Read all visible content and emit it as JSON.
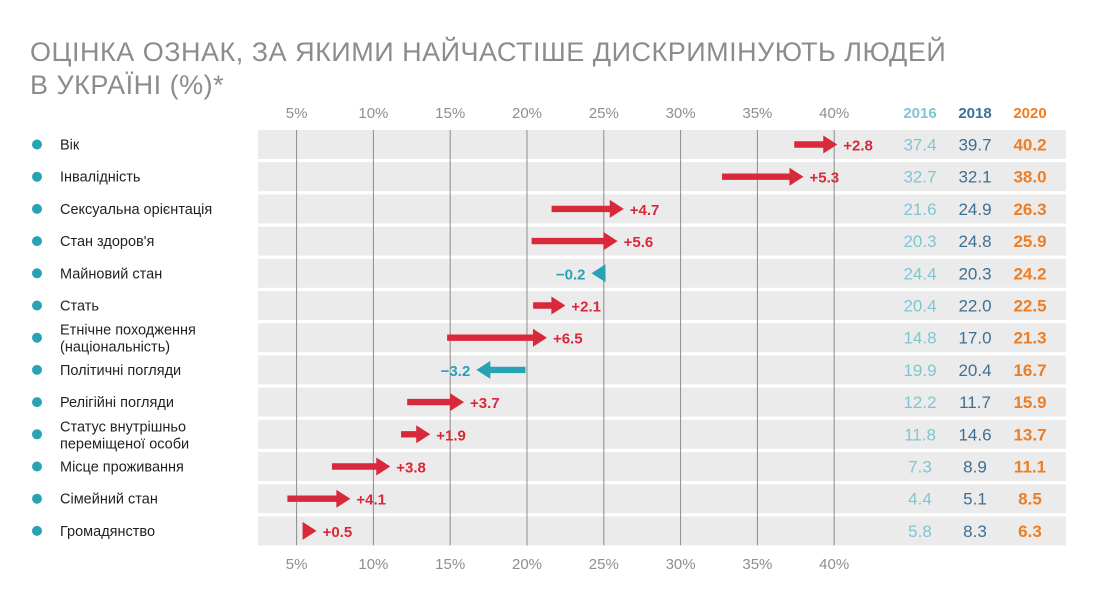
{
  "title_lines": [
    "ОЦІНКА ОЗНАК, ЗА ЯКИМИ НАЙЧАСТІШЕ ДИСКРИМІНУЮТЬ ЛЮДЕЙ",
    "В УКРАЇНІ (%)*"
  ],
  "colors": {
    "increase": "#d8283a",
    "decrease": "#27a3b5",
    "bullet": "#27a3b5",
    "year_2016": "#7ec6d1",
    "year_2018": "#3f6f93",
    "year_2020": "#ef7d22",
    "row_band": "#ebebeb",
    "grid": "#8c8c8c"
  },
  "chart_data": {
    "type": "arrow",
    "x_ticks": [
      "5%",
      "10%",
      "15%",
      "20%",
      "25%",
      "30%",
      "35%",
      "40%"
    ],
    "x_tick_values": [
      5,
      10,
      15,
      20,
      25,
      30,
      35,
      40
    ],
    "xlim": [
      2,
      46
    ],
    "years": [
      "2016",
      "2018",
      "2020"
    ],
    "rows": [
      {
        "label": [
          "Вік"
        ],
        "v2016": "37.4",
        "v2018": "39.7",
        "v2020": "40.2",
        "delta": "+2.8"
      },
      {
        "label": [
          "Інвалідність"
        ],
        "v2016": "32.7",
        "v2018": "32.1",
        "v2020": "38.0",
        "delta": "+5.3"
      },
      {
        "label": [
          "Сексуальна орієнтація"
        ],
        "v2016": "21.6",
        "v2018": "24.9",
        "v2020": "26.3",
        "delta": "+4.7"
      },
      {
        "label": [
          "Стан здоров'я"
        ],
        "v2016": "20.3",
        "v2018": "24.8",
        "v2020": "25.9",
        "delta": "+5.6"
      },
      {
        "label": [
          "Майновий стан"
        ],
        "v2016": "24.4",
        "v2018": "20.3",
        "v2020": "24.2",
        "delta": "−0.2"
      },
      {
        "label": [
          "Стать"
        ],
        "v2016": "20.4",
        "v2018": "22.0",
        "v2020": "22.5",
        "delta": "+2.1"
      },
      {
        "label": [
          "Етнічне походження",
          "(національність)"
        ],
        "v2016": "14.8",
        "v2018": "17.0",
        "v2020": "21.3",
        "delta": "+6.5"
      },
      {
        "label": [
          "Політичні погляди"
        ],
        "v2016": "19.9",
        "v2018": "20.4",
        "v2020": "16.7",
        "delta": "−3.2"
      },
      {
        "label": [
          "Релігійні погляди"
        ],
        "v2016": "12.2",
        "v2018": "11.7",
        "v2020": "15.9",
        "delta": "+3.7"
      },
      {
        "label": [
          "Статус внутрішньо",
          "переміщеної особи"
        ],
        "v2016": "11.8",
        "v2018": "14.6",
        "v2020": "13.7",
        "delta": "+1.9"
      },
      {
        "label": [
          "Місце проживання"
        ],
        "v2016": "7.3",
        "v2018": "8.9",
        "v2020": "11.1",
        "delta": "+3.8"
      },
      {
        "label": [
          "Сімейний стан"
        ],
        "v2016": "4.4",
        "v2018": "5.1",
        "v2020": "8.5",
        "delta": "+4.1"
      },
      {
        "label": [
          "Громадянство"
        ],
        "v2016": "5.8",
        "v2018": "8.3",
        "v2020": "6.3",
        "delta": "+0.5"
      }
    ]
  }
}
